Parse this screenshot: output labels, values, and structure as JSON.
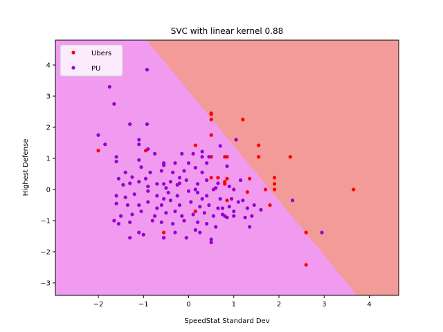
{
  "chart_data": {
    "type": "scatter",
    "title": "SVC with linear kernel 0.88",
    "xlabel": "SpeedStat Standard Dev",
    "ylabel": "Highest Defense",
    "xlim": [
      -2.95,
      4.65
    ],
    "ylim": [
      -3.4,
      4.8
    ],
    "xticks": [
      -2,
      -1,
      0,
      1,
      2,
      3,
      4
    ],
    "yticks": [
      -3,
      -2,
      -1,
      0,
      1,
      2,
      3,
      4
    ],
    "grid": false,
    "legend_position": "top-left",
    "decision_boundary": {
      "points": [
        [
          -0.93,
          4.8
        ],
        [
          3.73,
          -3.4
        ]
      ],
      "region_above_color": "#f29b99",
      "region_below_color": "#f09bf0"
    },
    "series": [
      {
        "name": "Ubers",
        "color": "#ff0000",
        "points": [
          [
            -2.0,
            1.25
          ],
          [
            -0.95,
            1.25
          ],
          [
            0.15,
            1.42
          ],
          [
            0.5,
            2.45
          ],
          [
            0.5,
            2.42
          ],
          [
            0.5,
            2.25
          ],
          [
            0.5,
            1.75
          ],
          [
            0.5,
            1.05
          ],
          [
            0.5,
            0.38
          ],
          [
            0.65,
            0.38
          ],
          [
            0.8,
            1.05
          ],
          [
            0.8,
            0.25
          ],
          [
            0.8,
            0.18
          ],
          [
            0.85,
            1.05
          ],
          [
            0.85,
            0.35
          ],
          [
            0.85,
            -0.35
          ],
          [
            1.2,
            2.25
          ],
          [
            1.3,
            -0.08
          ],
          [
            1.35,
            0.35
          ],
          [
            1.55,
            1.42
          ],
          [
            1.55,
            1.05
          ],
          [
            1.7,
            0.0
          ],
          [
            1.8,
            -0.5
          ],
          [
            1.9,
            0.38
          ],
          [
            1.9,
            0.18
          ],
          [
            1.9,
            0.0
          ],
          [
            2.25,
            1.05
          ],
          [
            2.6,
            -1.38
          ],
          [
            2.6,
            -2.42
          ],
          [
            3.65,
            0.0
          ],
          [
            -0.55,
            -1.38
          ],
          [
            0.15,
            -0.7
          ]
        ]
      },
      {
        "name": "PU",
        "color": "#9400d3",
        "points": [
          [
            -0.92,
            3.85
          ],
          [
            -1.75,
            3.3
          ],
          [
            -1.65,
            2.75
          ],
          [
            -1.3,
            2.1
          ],
          [
            -0.92,
            2.1
          ],
          [
            -2.0,
            1.75
          ],
          [
            -1.85,
            1.45
          ],
          [
            -1.1,
            1.6
          ],
          [
            -1.1,
            1.45
          ],
          [
            -0.9,
            1.3
          ],
          [
            -0.75,
            1.15
          ],
          [
            -1.6,
            1.05
          ],
          [
            -1.6,
            0.9
          ],
          [
            -1.1,
            0.95
          ],
          [
            -0.55,
            0.85
          ],
          [
            -0.55,
            0.78
          ],
          [
            -0.3,
            0.85
          ],
          [
            -0.15,
            1.15
          ],
          [
            -1.4,
            0.55
          ],
          [
            -1.05,
            0.72
          ],
          [
            -0.85,
            0.55
          ],
          [
            -0.6,
            0.6
          ],
          [
            -0.35,
            0.55
          ],
          [
            -1.55,
            0.35
          ],
          [
            -1.25,
            0.4
          ],
          [
            -1.1,
            0.25
          ],
          [
            -0.95,
            0.35
          ],
          [
            -0.7,
            0.18
          ],
          [
            -0.55,
            0.18
          ],
          [
            -0.4,
            0.25
          ],
          [
            -0.2,
            0.38
          ],
          [
            0.0,
            0.85
          ],
          [
            0.15,
            0.7
          ],
          [
            0.3,
            0.55
          ],
          [
            -1.45,
            0.15
          ],
          [
            -1.3,
            0.2
          ],
          [
            -0.9,
            0.1
          ],
          [
            -0.5,
            0.05
          ],
          [
            -0.25,
            0.15
          ],
          [
            -0.05,
            0.3
          ],
          [
            0.2,
            0.18
          ],
          [
            0.3,
            1.05
          ],
          [
            0.4,
            0.85
          ],
          [
            0.1,
            1.15
          ],
          [
            0.3,
            1.22
          ],
          [
            0.45,
            1.05
          ],
          [
            -1.6,
            -0.2
          ],
          [
            -1.4,
            -0.25
          ],
          [
            -1.2,
            -0.15
          ],
          [
            -0.9,
            -0.05
          ],
          [
            -0.7,
            -0.2
          ],
          [
            -0.45,
            -0.1
          ],
          [
            -0.25,
            -0.2
          ],
          [
            0.0,
            -0.05
          ],
          [
            0.2,
            -0.1
          ],
          [
            0.4,
            -0.2
          ],
          [
            -1.6,
            -0.45
          ],
          [
            -1.35,
            -0.5
          ],
          [
            -1.1,
            -0.5
          ],
          [
            -0.9,
            -0.4
          ],
          [
            -0.6,
            -0.5
          ],
          [
            -0.4,
            -0.35
          ],
          [
            -0.2,
            -0.5
          ],
          [
            0.05,
            -0.4
          ],
          [
            0.25,
            -0.55
          ],
          [
            0.45,
            -0.5
          ],
          [
            -1.5,
            -0.85
          ],
          [
            -1.25,
            -0.8
          ],
          [
            -1.05,
            -0.7
          ],
          [
            -0.75,
            -0.85
          ],
          [
            -0.5,
            -0.75
          ],
          [
            -0.3,
            -0.7
          ],
          [
            -0.15,
            -0.85
          ],
          [
            0.1,
            -0.8
          ],
          [
            0.35,
            -0.75
          ],
          [
            0.55,
            -0.85
          ],
          [
            -1.65,
            -1.0
          ],
          [
            -1.55,
            -1.1
          ],
          [
            -1.3,
            -1.05
          ],
          [
            -0.8,
            -1.0
          ],
          [
            -0.6,
            -1.05
          ],
          [
            -0.35,
            -1.1
          ],
          [
            -0.1,
            -1.0
          ],
          [
            0.2,
            -1.05
          ],
          [
            0.4,
            -1.1
          ],
          [
            -1.3,
            -1.55
          ],
          [
            -1.1,
            -1.38
          ],
          [
            -1.0,
            -1.45
          ],
          [
            -0.55,
            -1.55
          ],
          [
            -0.3,
            -1.38
          ],
          [
            -0.05,
            -1.55
          ],
          [
            0.15,
            -1.3
          ],
          [
            0.25,
            -1.38
          ],
          [
            0.5,
            -1.6
          ],
          [
            0.5,
            -1.7
          ],
          [
            0.6,
            0.05
          ],
          [
            0.7,
            1.4
          ],
          [
            0.65,
            0.2
          ],
          [
            0.7,
            -0.3
          ],
          [
            0.75,
            -0.6
          ],
          [
            0.8,
            -0.85
          ],
          [
            0.85,
            -0.9
          ],
          [
            0.9,
            0.1
          ],
          [
            0.9,
            -0.55
          ],
          [
            0.95,
            -0.3
          ],
          [
            1.0,
            0.0
          ],
          [
            1.05,
            1.6
          ],
          [
            1.0,
            -0.7
          ],
          [
            1.1,
            -0.4
          ],
          [
            1.15,
            0.3
          ],
          [
            1.2,
            -0.35
          ],
          [
            1.25,
            -0.9
          ],
          [
            1.3,
            -0.6
          ],
          [
            1.35,
            -1.2
          ],
          [
            1.4,
            -0.85
          ],
          [
            1.45,
            -0.5
          ],
          [
            1.6,
            -0.65
          ],
          [
            0.85,
            0.75
          ],
          [
            0.6,
            -1.2
          ],
          [
            0.4,
            0.3
          ],
          [
            -0.1,
            0.6
          ],
          [
            0.3,
            -0.3
          ],
          [
            0.65,
            -0.6
          ],
          [
            2.3,
            -0.35
          ],
          [
            2.95,
            -1.38
          ],
          [
            0.15,
            0.0
          ],
          [
            -0.55,
            -0.3
          ],
          [
            -0.2,
            0.2
          ],
          [
            0.75,
            -0.8
          ],
          [
            1.0,
            -0.85
          ],
          [
            -0.7,
            -0.6
          ],
          [
            0.55,
            0.0
          ]
        ]
      }
    ]
  }
}
